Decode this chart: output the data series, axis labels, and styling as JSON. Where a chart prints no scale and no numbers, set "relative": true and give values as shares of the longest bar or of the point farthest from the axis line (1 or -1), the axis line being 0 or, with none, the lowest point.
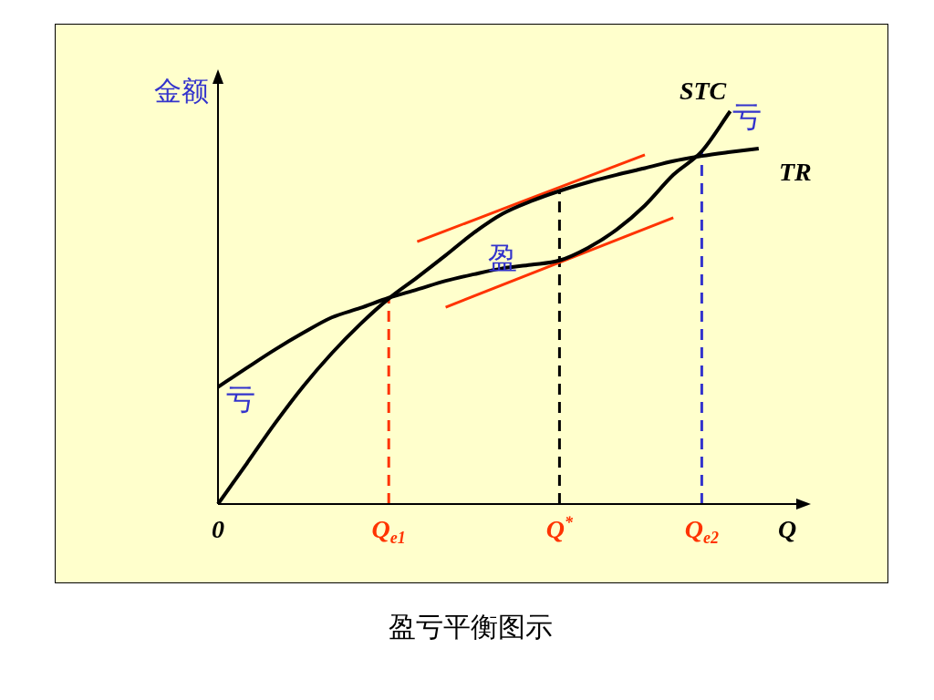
{
  "chart_data": {
    "type": "line",
    "relative": true,
    "title": "盈亏平衡图示",
    "ylabel": "金额",
    "categories": [
      "0",
      null,
      null,
      null,
      null,
      null,
      "Q$_{e1}$",
      null,
      null,
      null,
      null,
      null,
      "Q$^{*}$",
      null,
      null,
      null,
      null,
      "Q$_{e2}$",
      null,
      null,
      "Q"
    ],
    "series": [
      {
        "name": "TR",
        "color": "#000000",
        "values": [
          0,
          0.102,
          0.205,
          0.3,
          0.384,
          0.458,
          0.523,
          0.577,
          0.633,
          0.691,
          0.739,
          0.771,
          0.797,
          0.819,
          0.838,
          0.855,
          0.873,
          0.886,
          0.896,
          0.905,
          null
        ]
      },
      {
        "name": "STC",
        "color": "#000000",
        "values": [
          0.298,
          0.346,
          0.393,
          0.436,
          0.475,
          0.499,
          0.525,
          0.546,
          0.568,
          0.585,
          0.6,
          0.609,
          0.62,
          0.652,
          0.698,
          0.76,
          0.838,
          0.898,
          1,
          null,
          null
        ]
      },
      {
        "color": "#ff3300",
        "values": [
          null,
          null,
          null,
          null,
          null,
          null,
          null,
          0.668,
          null,
          null,
          null,
          null,
          null,
          null,
          null,
          0.889,
          null,
          null,
          null,
          null,
          null
        ]
      },
      {
        "color": "#ff3300",
        "values": [
          null,
          null,
          null,
          null,
          null,
          null,
          null,
          null,
          0.501,
          null,
          null,
          null,
          null,
          null,
          null,
          null,
          0.729,
          null,
          null,
          null,
          null
        ]
      }
    ],
    "ref_lines": [
      {
        "axis": "x",
        "value": "Q$_{e1}$",
        "color": "#ff3300",
        "line_style": "dashed"
      },
      {
        "axis": "x",
        "value": "Q$^{*}$",
        "color": "#000000",
        "line_style": "dashed"
      },
      {
        "axis": "x",
        "value": "Q$_{e2}$",
        "color": "#3333cc",
        "line_style": "dashed"
      }
    ],
    "annotations": [
      "亏",
      "盈",
      "亏"
    ]
  }
}
